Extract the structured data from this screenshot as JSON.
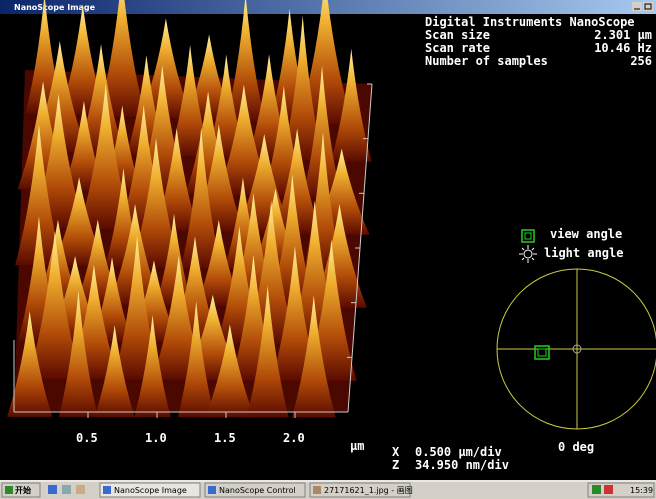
{
  "window": {
    "title": "NanoScope Image"
  },
  "header": {
    "title": "Digital Instruments NanoScope",
    "params": [
      [
        "Scan size",
        "2.301 µm"
      ],
      [
        "Scan rate",
        "10.46 Hz"
      ],
      [
        "Number of samples",
        "256"
      ]
    ]
  },
  "legend": {
    "view": "view angle",
    "light": "light angle"
  },
  "angle": "0 deg",
  "axis": {
    "ticks": [
      "0.5",
      "1.0",
      "1.5",
      "2.0"
    ],
    "unit": "µm"
  },
  "scale": [
    [
      "X",
      "0.500 µm/div"
    ],
    [
      "Z",
      "34.950 nm/div"
    ]
  ],
  "taskbar": {
    "start": "开始",
    "tasks": [
      "NanoScope Image",
      "NanoScope Control",
      "27171621_1.jpg - 画图"
    ],
    "clock": "15:39"
  }
}
